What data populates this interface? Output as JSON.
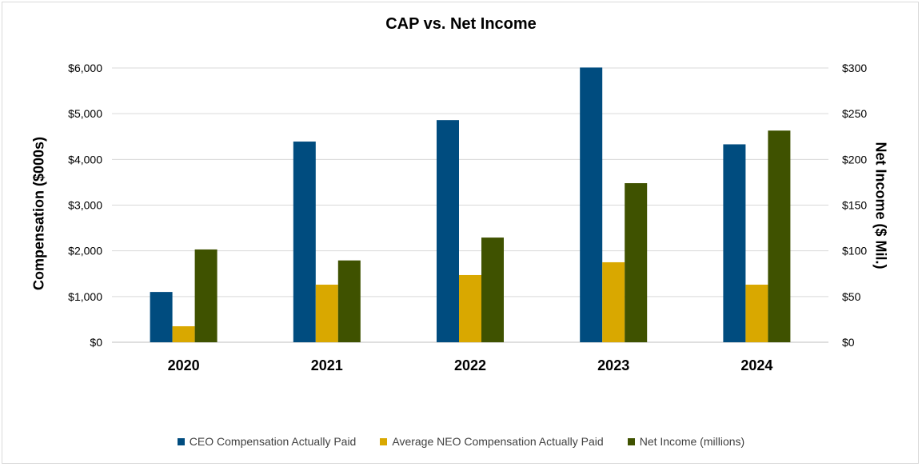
{
  "chart_data": {
    "type": "bar",
    "title": "CAP vs. Net Income",
    "ylabel": "Compensation ($000s)",
    "y2label": "Net Income ($ Mil.)",
    "categories": [
      "2020",
      "2021",
      "2022",
      "2023",
      "2024"
    ],
    "ylim": [
      0,
      6000
    ],
    "y2lim": [
      0,
      300
    ],
    "y_ticks": [
      "$0",
      "$1,000",
      "$2,000",
      "$3,000",
      "$4,000",
      "$5,000",
      "$6,000"
    ],
    "y2_ticks": [
      "$0",
      "$50",
      "$100",
      "$150",
      "$200",
      "$250",
      "$300"
    ],
    "grid": true,
    "legend_position": "bottom",
    "series": [
      {
        "name": "CEO Compensation Actually Paid",
        "axis": "left",
        "color": "#004c7f",
        "values": [
          1100,
          4390,
          4860,
          6010,
          4330
        ]
      },
      {
        "name": "Average NEO Compensation Actually Paid",
        "axis": "left",
        "color": "#d9a800",
        "values": [
          350,
          1260,
          1470,
          1750,
          1260
        ]
      },
      {
        "name": "Net Income (millions)",
        "axis": "right",
        "color": "#3f5200",
        "values": [
          101.5,
          89.5,
          114.5,
          174,
          231.5
        ]
      }
    ]
  }
}
